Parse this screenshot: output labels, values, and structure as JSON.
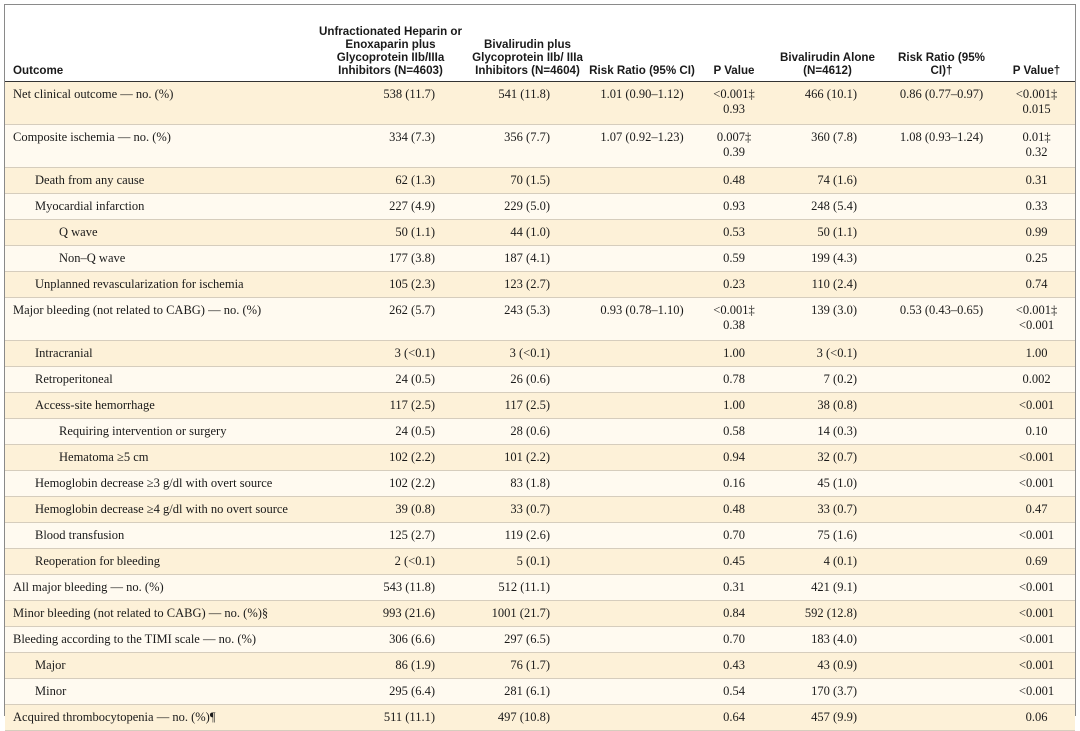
{
  "headers": [
    {
      "key": "outcome",
      "text": "Outcome"
    },
    {
      "key": "heparin",
      "text": "Unfractionated Heparin or Enoxaparin plus Glycoprotein IIb/IIIa Inhibitors (N=4603)"
    },
    {
      "key": "biv_gp",
      "text": "Bivalirudin plus Glycoprotein IIb/ IIIa Inhibitors (N=4604)"
    },
    {
      "key": "rr1",
      "text": "Risk Ratio (95% CI)"
    },
    {
      "key": "p1",
      "text": "P Value"
    },
    {
      "key": "biv_alone",
      "text": "Bivalirudin Alone (N=4612)"
    },
    {
      "key": "rr2",
      "text": "Risk Ratio (95% CI)†"
    },
    {
      "key": "p2",
      "text": "P Value†"
    }
  ],
  "rows": [
    {
      "level": 0,
      "label": "Net clinical outcome — no. (%)",
      "heparin": "538 (11.7)",
      "biv_gp": "541 (11.8)",
      "rr1": "1.01 (0.90–1.12)",
      "p1": [
        "<0.001‡",
        "0.93"
      ],
      "biv_alone": "466 (10.1)",
      "rr2": "0.86 (0.77–0.97)",
      "p2": [
        "<0.001‡",
        "0.015"
      ]
    },
    {
      "level": 0,
      "label": "Composite ischemia — no. (%)",
      "heparin": "334 (7.3)",
      "biv_gp": "356 (7.7)",
      "rr1": "1.07 (0.92–1.23)",
      "p1": [
        "0.007‡",
        "0.39"
      ],
      "biv_alone": "360 (7.8)",
      "rr2": "1.08 (0.93–1.24)",
      "p2": [
        "0.01‡",
        "0.32"
      ]
    },
    {
      "level": 1,
      "label": "Death from any cause",
      "heparin": "62 (1.3)",
      "biv_gp": "70 (1.5)",
      "rr1": "",
      "p1": [
        "0.48"
      ],
      "biv_alone": "74 (1.6)",
      "rr2": "",
      "p2": [
        "0.31"
      ]
    },
    {
      "level": 1,
      "label": "Myocardial infarction",
      "heparin": "227 (4.9)",
      "biv_gp": "229 (5.0)",
      "rr1": "",
      "p1": [
        "0.93"
      ],
      "biv_alone": "248 (5.4)",
      "rr2": "",
      "p2": [
        "0.33"
      ]
    },
    {
      "level": 2,
      "label": "Q wave",
      "heparin": "50 (1.1)",
      "biv_gp": "44 (1.0)",
      "rr1": "",
      "p1": [
        "0.53"
      ],
      "biv_alone": "50 (1.1)",
      "rr2": "",
      "p2": [
        "0.99"
      ]
    },
    {
      "level": 2,
      "label": "Non–Q wave",
      "heparin": "177 (3.8)",
      "biv_gp": "187 (4.1)",
      "rr1": "",
      "p1": [
        "0.59"
      ],
      "biv_alone": "199 (4.3)",
      "rr2": "",
      "p2": [
        "0.25"
      ]
    },
    {
      "level": 1,
      "label": "Unplanned revascularization for ischemia",
      "heparin": "105 (2.3)",
      "biv_gp": "123 (2.7)",
      "rr1": "",
      "p1": [
        "0.23"
      ],
      "biv_alone": "110 (2.4)",
      "rr2": "",
      "p2": [
        "0.74"
      ]
    },
    {
      "level": 0,
      "label": "Major bleeding (not related to CABG) — no. (%)",
      "heparin": "262 (5.7)",
      "biv_gp": "243 (5.3)",
      "rr1": "0.93 (0.78–1.10)",
      "p1": [
        "<0.001‡",
        "0.38"
      ],
      "biv_alone": "139 (3.0)",
      "rr2": "0.53 (0.43–0.65)",
      "p2": [
        "<0.001‡",
        "<0.001"
      ]
    },
    {
      "level": 1,
      "label": "Intracranial",
      "heparin": "3 (<0.1)",
      "biv_gp": "3 (<0.1)",
      "rr1": "",
      "p1": [
        "1.00"
      ],
      "biv_alone": "3 (<0.1)",
      "rr2": "",
      "p2": [
        "1.00"
      ]
    },
    {
      "level": 1,
      "label": "Retroperitoneal",
      "heparin": "24 (0.5)",
      "biv_gp": "26 (0.6)",
      "rr1": "",
      "p1": [
        "0.78"
      ],
      "biv_alone": "7 (0.2)",
      "rr2": "",
      "p2": [
        "0.002"
      ]
    },
    {
      "level": 1,
      "label": "Access-site hemorrhage",
      "heparin": "117 (2.5)",
      "biv_gp": "117 (2.5)",
      "rr1": "",
      "p1": [
        "1.00"
      ],
      "biv_alone": "38 (0.8)",
      "rr2": "",
      "p2": [
        "<0.001"
      ]
    },
    {
      "level": 2,
      "label": "Requiring intervention or surgery",
      "heparin": "24 (0.5)",
      "biv_gp": "28 (0.6)",
      "rr1": "",
      "p1": [
        "0.58"
      ],
      "biv_alone": "14 (0.3)",
      "rr2": "",
      "p2": [
        "0.10"
      ]
    },
    {
      "level": 2,
      "label": "Hematoma ≥5 cm",
      "heparin": "102 (2.2)",
      "biv_gp": "101 (2.2)",
      "rr1": "",
      "p1": [
        "0.94"
      ],
      "biv_alone": "32 (0.7)",
      "rr2": "",
      "p2": [
        "<0.001"
      ]
    },
    {
      "level": 1,
      "label": "Hemoglobin decrease ≥3 g/dl with overt source",
      "heparin": "102 (2.2)",
      "biv_gp": "83 (1.8)",
      "rr1": "",
      "p1": [
        "0.16"
      ],
      "biv_alone": "45 (1.0)",
      "rr2": "",
      "p2": [
        "<0.001"
      ]
    },
    {
      "level": 1,
      "label": "Hemoglobin decrease ≥4 g/dl with no overt source",
      "heparin": "39 (0.8)",
      "biv_gp": "33 (0.7)",
      "rr1": "",
      "p1": [
        "0.48"
      ],
      "biv_alone": "33 (0.7)",
      "rr2": "",
      "p2": [
        "0.47"
      ]
    },
    {
      "level": 1,
      "label": "Blood transfusion",
      "heparin": "125 (2.7)",
      "biv_gp": "119 (2.6)",
      "rr1": "",
      "p1": [
        "0.70"
      ],
      "biv_alone": "75 (1.6)",
      "rr2": "",
      "p2": [
        "<0.001"
      ]
    },
    {
      "level": 1,
      "label": "Reoperation for bleeding",
      "heparin": "2 (<0.1)",
      "biv_gp": "5 (0.1)",
      "rr1": "",
      "p1": [
        "0.45"
      ],
      "biv_alone": "4 (0.1)",
      "rr2": "",
      "p2": [
        "0.69"
      ]
    },
    {
      "level": 0,
      "label": "All major bleeding — no. (%)",
      "heparin": "543 (11.8)",
      "biv_gp": "512 (11.1)",
      "rr1": "",
      "p1": [
        "0.31"
      ],
      "biv_alone": "421 (9.1)",
      "rr2": "",
      "p2": [
        "<0.001"
      ]
    },
    {
      "level": 0,
      "label": "Minor bleeding (not related to CABG) — no. (%)§",
      "heparin": "993 (21.6)",
      "biv_gp": "1001 (21.7)",
      "rr1": "",
      "p1": [
        "0.84"
      ],
      "biv_alone": "592 (12.8)",
      "rr2": "",
      "p2": [
        "<0.001"
      ]
    },
    {
      "level": 0,
      "label": "Bleeding according to the TIMI scale — no. (%)",
      "heparin": "306 (6.6)",
      "biv_gp": "297 (6.5)",
      "rr1": "",
      "p1": [
        "0.70"
      ],
      "biv_alone": "183 (4.0)",
      "rr2": "",
      "p2": [
        "<0.001"
      ]
    },
    {
      "level": 1,
      "label": "Major",
      "heparin": "86 (1.9)",
      "biv_gp": "76 (1.7)",
      "rr1": "",
      "p1": [
        "0.43"
      ],
      "biv_alone": "43 (0.9)",
      "rr2": "",
      "p2": [
        "<0.001"
      ]
    },
    {
      "level": 1,
      "label": "Minor",
      "heparin": "295 (6.4)",
      "biv_gp": "281 (6.1)",
      "rr1": "",
      "p1": [
        "0.54"
      ],
      "biv_alone": "170 (3.7)",
      "rr2": "",
      "p2": [
        "<0.001"
      ]
    },
    {
      "level": 0,
      "label": "Acquired thrombocytopenia — no. (%)¶",
      "heparin": "511 (11.1)",
      "biv_gp": "497 (10.8)",
      "rr1": "",
      "p1": [
        "0.64"
      ],
      "biv_alone": "457 (9.9)",
      "rr2": "",
      "p2": [
        "0.06"
      ]
    }
  ]
}
